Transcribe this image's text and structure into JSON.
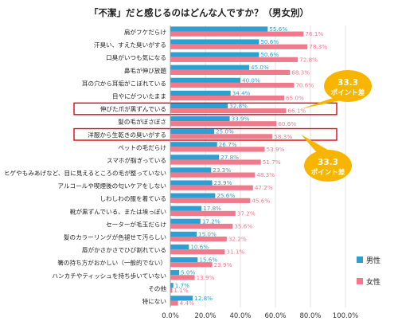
{
  "chart_data": {
    "type": "bar",
    "orientation": "horizontal",
    "title": "「不潔」だと感じるのはどんな人ですか？（男女別）",
    "categories": [
      "肩がフケだらけ",
      "汗臭い、すえた臭いがする",
      "口臭がいつも気になる",
      "鼻毛が伸び放題",
      "耳の穴から耳垢がこぼれている",
      "目やにがついたまま",
      "伸びた爪が黒ずんでいる",
      "髪の毛がぼさぼさ",
      "洋服から生乾きの臭いがする",
      "ペットの毛だらけ",
      "スマホが脂ぎっている",
      "ヒゲやもみあげなど、目に見えるところの毛が整っていない",
      "アルコールや喫煙後の匂いケアをしない",
      "しわしわの服を着ている",
      "靴が黒ずんでいる、または埃っぽい",
      "セーターが毛玉だらけ",
      "髪のカラーリングが色褪せて汚らしい",
      "唇がかさかさでひび割れている",
      "箸の持ち方がおかしい（一般的でない）",
      "ハンカチやティッシュを持ち歩いていない",
      "その他",
      "特にない"
    ],
    "series": [
      {
        "name": "男性",
        "color": "#2e9fd3",
        "values": [
          55.6,
          50.6,
          50.6,
          45.0,
          40.0,
          34.4,
          32.8,
          33.9,
          25.0,
          26.7,
          27.8,
          23.3,
          23.9,
          25.6,
          17.8,
          17.2,
          15.0,
          10.6,
          15.6,
          5.0,
          1.7,
          12.8
        ],
        "labels": [
          "55.6%",
          "50.6%",
          "50.6%",
          "45.0%",
          "40.0%",
          "34.4%",
          "32.8%",
          "33.9%",
          "25.0%",
          "26.7%",
          "27.8%",
          "23.3%",
          "23.9%",
          "25.6%",
          "17.8%",
          "17.2%",
          "15.0%",
          "10.6%",
          "15.6%",
          "5.0%",
          "1.7%",
          "12.8%"
        ]
      },
      {
        "name": "女性",
        "color": "#f07a8c",
        "values": [
          76.1,
          78.3,
          72.8,
          68.3,
          70.6,
          65.0,
          66.1,
          60.6,
          58.3,
          53.9,
          51.7,
          48.3,
          47.2,
          45.6,
          37.2,
          35.6,
          32.2,
          31.1,
          23.9,
          13.9,
          1.1,
          4.4
        ],
        "labels": [
          "76.1%",
          "78.3%",
          "72.8%",
          "68.3%",
          "70.6%",
          "65.0%",
          "66.1%",
          "60.6%",
          "58.3%",
          "53.9%",
          "51.7%",
          "48.3%",
          "47.2%",
          "45.6%",
          "37.2%",
          "35.6%",
          "32.2%",
          "31.1%",
          "23.9%",
          "13.9%",
          "1.1%",
          "4.4%"
        ]
      }
    ],
    "xlim": [
      0,
      100
    ],
    "x_ticks": [
      "0.0%",
      "20.0%",
      "40.0%",
      "60.0%",
      "80.0%",
      "100.0%"
    ],
    "grid": true,
    "legend_position": "right",
    "highlighted_categories": [
      6,
      8
    ],
    "annotations": [
      {
        "line1": "33.3",
        "line2": "ポイント差",
        "target": 6
      },
      {
        "line1": "33.3",
        "line2": "ポイント差",
        "target": 8
      }
    ],
    "annotation_color": "#f7b500",
    "highlight_color": "#e60012"
  }
}
